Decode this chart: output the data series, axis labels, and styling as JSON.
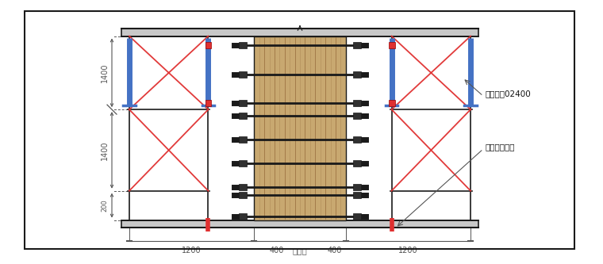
{
  "bg_color": "#ffffff",
  "line_color": "#1a1a1a",
  "red_color": "#e03030",
  "blue_color": "#4472c4",
  "wood_color": "#c8a870",
  "wood_stripe_color": "#9a7040",
  "dim_color": "#555555",
  "slab_color": "#c8c8c8",
  "dark_color": "#303030",
  "fig_width": 7.6,
  "fig_height": 3.33,
  "label_1400_1": "1400",
  "label_1400_2": "1400",
  "label_200": "200",
  "label_1200_left": "1200",
  "label_400_left": "400",
  "label_zhubianChang": "柱边长",
  "label_400_right": "400",
  "label_1200_right": "1200",
  "annotation_pipe": "钒管斜撗02400",
  "annotation_anchor": "预埋钒筋地锄"
}
